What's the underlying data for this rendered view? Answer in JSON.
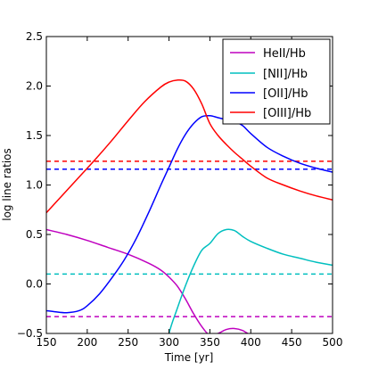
{
  "chart_data": {
    "type": "line",
    "xlabel": "Time [yr]",
    "ylabel": "log line ratios",
    "xlim": [
      150,
      500
    ],
    "ylim": [
      -0.5,
      2.5
    ],
    "xticks": [
      150,
      200,
      250,
      300,
      350,
      400,
      450,
      500
    ],
    "yticks": [
      -0.5,
      0.0,
      0.5,
      1.0,
      1.5,
      2.0,
      2.5
    ],
    "xtick_labels": [
      "150",
      "200",
      "250",
      "300",
      "350",
      "400",
      "450",
      "500"
    ],
    "ytick_labels": [
      "−0.5",
      "0.0",
      "0.5",
      "1.0",
      "1.5",
      "2.0",
      "2.5"
    ],
    "grid": false,
    "legend_position": "top-right",
    "series": [
      {
        "name": "HeII/Hb",
        "color": "#bf00bf",
        "x": [
          150,
          175,
          200,
          225,
          250,
          275,
          290,
          300,
          310,
          320,
          330,
          340,
          350,
          360,
          370,
          380,
          390,
          400,
          410
        ],
        "y": [
          0.55,
          0.5,
          0.44,
          0.37,
          0.3,
          0.21,
          0.14,
          0.07,
          -0.02,
          -0.15,
          -0.3,
          -0.43,
          -0.52,
          -0.5,
          -0.46,
          -0.45,
          -0.47,
          -0.52,
          -0.56
        ]
      },
      {
        "name": "[NII]/Hb",
        "color": "#00bfbf",
        "x": [
          290,
          300,
          310,
          320,
          330,
          340,
          350,
          360,
          370,
          380,
          390,
          400,
          420,
          440,
          460,
          480,
          500
        ],
        "y": [
          -0.9,
          -0.5,
          -0.25,
          -0.02,
          0.18,
          0.34,
          0.41,
          0.51,
          0.55,
          0.54,
          0.48,
          0.43,
          0.36,
          0.3,
          0.26,
          0.22,
          0.19
        ]
      },
      {
        "name": "[OII]/Hb",
        "color": "#0000ff",
        "x": [
          150,
          160,
          175,
          190,
          200,
          215,
          230,
          245,
          260,
          275,
          290,
          300,
          310,
          320,
          330,
          340,
          350,
          360,
          370,
          380,
          390,
          400,
          420,
          440,
          460,
          480,
          500
        ],
        "y": [
          -0.27,
          -0.28,
          -0.29,
          -0.27,
          -0.22,
          -0.1,
          0.06,
          0.24,
          0.46,
          0.72,
          1.0,
          1.18,
          1.36,
          1.51,
          1.62,
          1.69,
          1.7,
          1.68,
          1.66,
          1.64,
          1.6,
          1.52,
          1.38,
          1.29,
          1.22,
          1.17,
          1.13
        ]
      },
      {
        "name": "[OIII]/Hb",
        "color": "#ff0000",
        "x": [
          150,
          170,
          190,
          210,
          230,
          250,
          270,
          290,
          300,
          310,
          320,
          330,
          340,
          350,
          360,
          370,
          380,
          390,
          400,
          420,
          440,
          460,
          480,
          500
        ],
        "y": [
          0.72,
          0.9,
          1.08,
          1.26,
          1.45,
          1.65,
          1.84,
          1.99,
          2.04,
          2.06,
          2.05,
          1.97,
          1.82,
          1.62,
          1.5,
          1.41,
          1.33,
          1.26,
          1.19,
          1.07,
          1.0,
          0.94,
          0.89,
          0.85
        ]
      }
    ],
    "reference_lines": [
      {
        "color": "#ff0000",
        "y": 1.24
      },
      {
        "color": "#0000ff",
        "y": 1.16
      },
      {
        "color": "#00bfbf",
        "y": 0.1
      },
      {
        "color": "#bf00bf",
        "y": -0.33
      }
    ]
  }
}
